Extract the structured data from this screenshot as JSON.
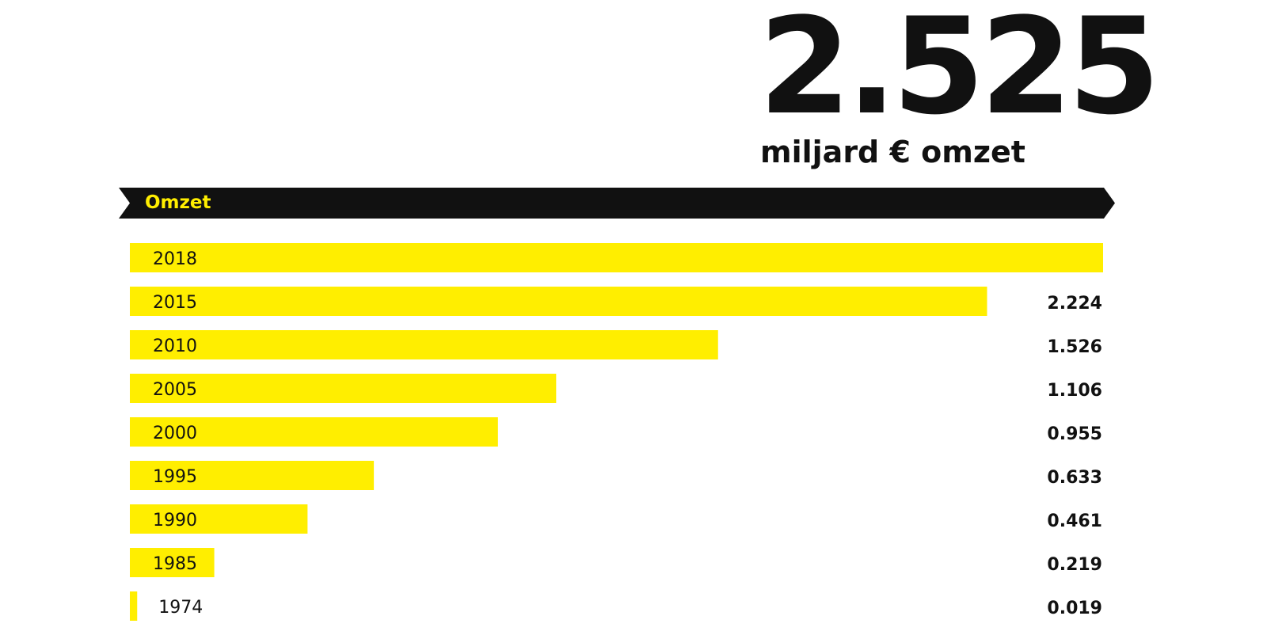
{
  "headline": {
    "value": "2.525",
    "unit_label": "miljard € omzet"
  },
  "banner": {
    "label": "Omzet"
  },
  "colors": {
    "bar": "#ffee00",
    "banner": "#111111",
    "banner_text": "#ffee00",
    "text": "#111111"
  },
  "chart_data": {
    "type": "bar",
    "orientation": "horizontal",
    "categories": [
      "2018",
      "2015",
      "2010",
      "2005",
      "2000",
      "1995",
      "1990",
      "1985",
      "1974"
    ],
    "values": [
      2.525,
      2.224,
      1.526,
      1.106,
      0.955,
      0.633,
      0.461,
      0.219,
      0.019
    ],
    "value_labels": [
      "",
      "2.224",
      "1.526",
      "1.106",
      "0.955",
      "0.633",
      "0.461",
      "0.219",
      "0.019"
    ],
    "title": "Omzet",
    "xlabel": "",
    "ylabel": "",
    "xlim": [
      0,
      2.525
    ],
    "grid": false,
    "legend": "none"
  }
}
